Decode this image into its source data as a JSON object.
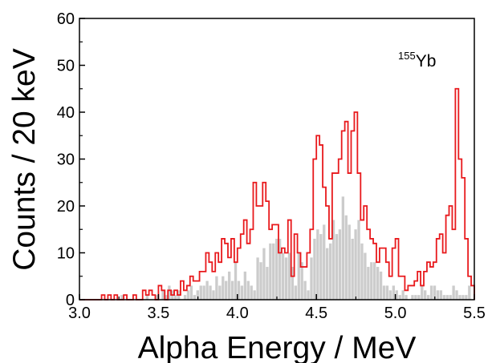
{
  "chart_data": {
    "type": "histogram",
    "xlabel": "Alpha Energy / MeV",
    "ylabel": "Counts / 20 keV",
    "xlim": [
      3.0,
      5.5
    ],
    "ylim": [
      0,
      60
    ],
    "x_ticks": [
      "3.0",
      "3.5",
      "4.0",
      "4.5",
      "5.0",
      "5.5"
    ],
    "y_ticks": [
      "0",
      "10",
      "20",
      "30",
      "40",
      "50",
      "60"
    ],
    "bin_width": 0.02,
    "x_start": 3.0,
    "annotation": {
      "superscript": "155",
      "text": "Yb"
    },
    "series": [
      {
        "style": "step",
        "color": "#e8191c",
        "values": [
          0,
          0,
          0,
          0,
          0,
          0,
          0,
          1,
          0,
          1,
          0,
          1,
          0,
          0,
          1,
          0,
          0,
          1,
          0,
          0,
          2,
          1,
          2,
          1,
          0,
          3,
          2,
          0,
          2,
          1,
          2,
          1,
          4,
          2,
          3,
          5,
          4,
          4,
          6,
          6,
          10,
          8,
          6,
          10,
          8,
          13,
          12,
          9,
          13,
          8,
          11,
          14,
          17,
          12,
          15,
          25,
          20,
          20,
          25,
          21,
          15,
          16,
          16,
          10,
          11,
          10,
          17,
          5,
          14,
          10,
          7,
          7,
          10,
          15,
          30,
          35,
          33,
          24,
          20,
          13,
          27,
          27,
          30,
          36,
          38,
          27,
          36,
          40,
          27,
          17,
          20,
          15,
          13,
          12,
          8,
          11,
          11,
          8,
          5,
          11,
          13,
          5,
          5,
          2,
          3,
          3,
          4,
          6,
          3,
          6,
          8,
          7,
          8,
          13,
          14,
          10,
          18,
          20,
          15,
          45,
          30,
          26,
          13,
          5,
          3
        ]
      },
      {
        "style": "filled-step",
        "color": "#cccccc",
        "values": [
          0,
          0,
          0,
          0,
          0,
          0,
          0,
          0,
          0,
          0,
          0,
          0,
          0,
          1,
          0,
          0,
          0,
          0,
          0,
          0,
          0,
          1,
          0,
          0,
          1,
          0,
          2,
          1,
          3,
          2,
          1,
          2,
          0,
          1,
          2,
          3,
          1,
          2,
          3,
          3,
          4,
          3,
          2,
          5,
          3,
          5,
          4,
          6,
          4,
          8,
          4,
          3,
          6,
          4,
          3,
          2,
          9,
          8,
          11,
          7,
          12,
          12,
          13,
          13,
          10,
          9,
          10,
          7,
          3,
          10,
          8,
          4,
          2,
          9,
          13,
          15,
          14,
          16,
          11,
          12,
          17,
          14,
          15,
          22,
          18,
          16,
          13,
          15,
          17,
          12,
          10,
          7,
          8,
          8,
          7,
          6,
          3,
          3,
          2,
          3,
          2,
          1,
          2,
          1,
          0,
          1,
          1,
          1,
          3,
          2,
          1,
          3,
          3,
          2,
          2,
          1,
          1,
          1,
          3,
          2,
          1,
          1,
          1,
          3,
          0
        ]
      }
    ]
  }
}
